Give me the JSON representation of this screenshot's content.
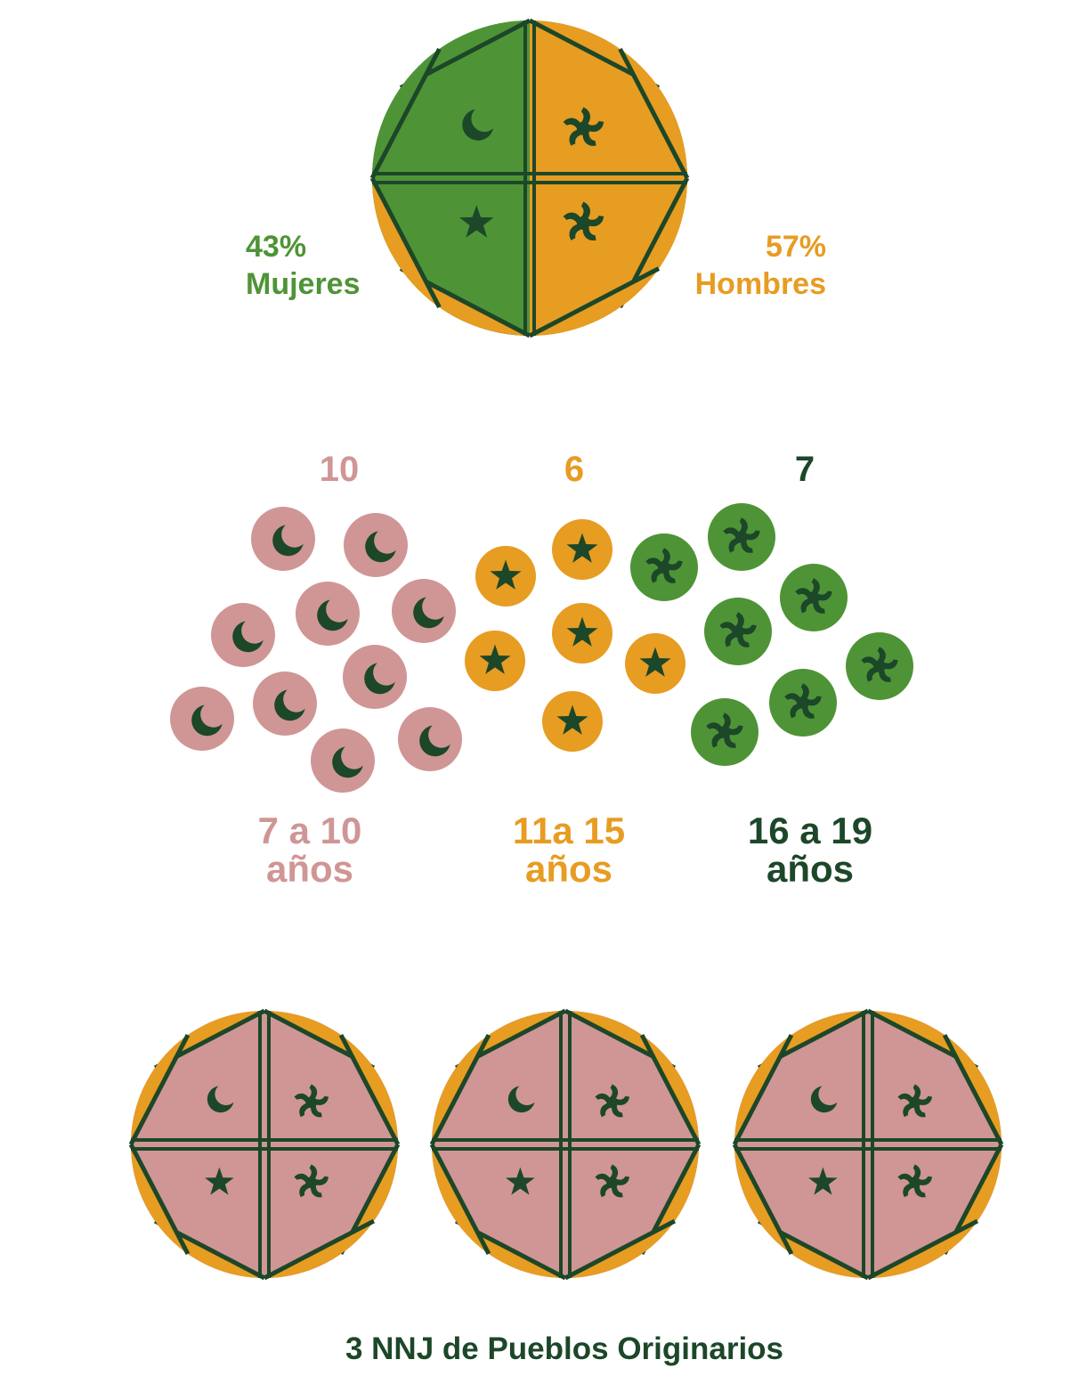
{
  "colors": {
    "green": "#4e9436",
    "orange": "#e79c22",
    "pink": "#cf9695",
    "dark": "#1c4729",
    "white": "#ffffff"
  },
  "chart_data": [
    {
      "type": "pie",
      "slices": [
        {
          "label": "Mujeres",
          "percent_label": "43%",
          "value": 43,
          "color": "#4e9436",
          "icon": "moon-and-swirl-icons"
        },
        {
          "label": "Hombres",
          "percent_label": "57%",
          "value": 57,
          "color": "#e79c22",
          "icon": "swirl-and-star-icons"
        }
      ]
    },
    {
      "type": "pictogram",
      "groups": [
        {
          "count_label": "10",
          "value": 10,
          "range_line1": "7 a 10",
          "range_line2": "años",
          "color": "#cf9695",
          "icon": "moon-icon"
        },
        {
          "count_label": "6",
          "value": 6,
          "range_line1": "11a 15",
          "range_line2": "años",
          "color": "#e79c22",
          "icon": "star-icon"
        },
        {
          "count_label": "7",
          "value": 7,
          "range_line1": "16 a 19",
          "range_line2": "años",
          "color": "#4e9436",
          "icon": "swirl-icon"
        }
      ]
    },
    {
      "type": "pictogram",
      "count": 3,
      "icon": "wenufoye-emblem",
      "caption": "3 NNJ de Pueblos Originarios"
    }
  ]
}
